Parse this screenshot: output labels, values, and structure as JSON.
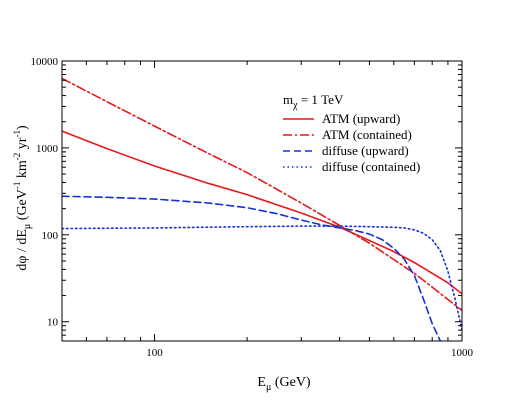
{
  "chart_data": {
    "type": "line",
    "xscale": "log",
    "yscale": "log",
    "xlim": [
      50,
      1000
    ],
    "ylim": [
      6,
      10000
    ],
    "xlabel": {
      "main": "E",
      "sub": "μ",
      "rest": " (GeV)"
    },
    "ylabel": {
      "main": "dφ / dE",
      "sub": "μ",
      "units_pre": "  (GeV",
      "sup1": "-1",
      "mid1": " km",
      "sup2": "-2",
      "mid2": " yr",
      "sup3": "-1",
      "post": ")"
    },
    "x_ticks": [
      {
        "value": 100,
        "label": "100"
      },
      {
        "value": 1000,
        "label": "1000"
      }
    ],
    "y_ticks": [
      {
        "value": 10,
        "label": "10"
      },
      {
        "value": 100,
        "label": "100"
      },
      {
        "value": 1000,
        "label": "1000"
      },
      {
        "value": 10000,
        "label": "10000"
      }
    ],
    "grid": false,
    "legend": {
      "position": "top-right",
      "title": {
        "main": "m",
        "sub": "χ",
        "rest": " = 1 TeV"
      }
    },
    "series": [
      {
        "name": "ATM (upward)",
        "color": "#e8191b",
        "dash": "solid",
        "x": [
          50,
          70,
          100,
          150,
          200,
          300,
          400,
          500,
          600,
          700,
          800,
          900,
          1000
        ],
        "y": [
          1560,
          980,
          620,
          390,
          290,
          178,
          122,
          86,
          64,
          48,
          36,
          28,
          21
        ]
      },
      {
        "name": "ATM (contained)",
        "color": "#e8191b",
        "dash": "dashdot",
        "x": [
          50,
          70,
          100,
          150,
          200,
          300,
          400,
          500,
          600,
          700,
          800,
          900,
          1000
        ],
        "y": [
          6300,
          3400,
          1780,
          860,
          520,
          232,
          128,
          80,
          52,
          36,
          25,
          18,
          13.5
        ]
      },
      {
        "name": "diffuse (upward)",
        "color": "#1530d8",
        "dash": "dashed",
        "x": [
          50,
          70,
          100,
          150,
          200,
          250,
          300,
          350,
          400,
          450,
          500,
          550,
          600,
          650,
          700,
          750,
          800,
          850
        ],
        "y": [
          278,
          270,
          258,
          232,
          205,
          175,
          148,
          130,
          120,
          112,
          102,
          88,
          70,
          52,
          34,
          18,
          9.5,
          6
        ]
      },
      {
        "name": "diffuse (contained)",
        "color": "#1530d8",
        "dash": "dotted",
        "x": [
          50,
          100,
          200,
          300,
          400,
          500,
          600,
          650,
          700,
          750,
          800,
          850,
          900,
          950,
          1000
        ],
        "y": [
          118,
          120,
          124,
          126,
          126,
          124,
          122,
          120,
          114,
          104,
          88,
          66,
          38,
          18,
          8
        ]
      }
    ]
  }
}
